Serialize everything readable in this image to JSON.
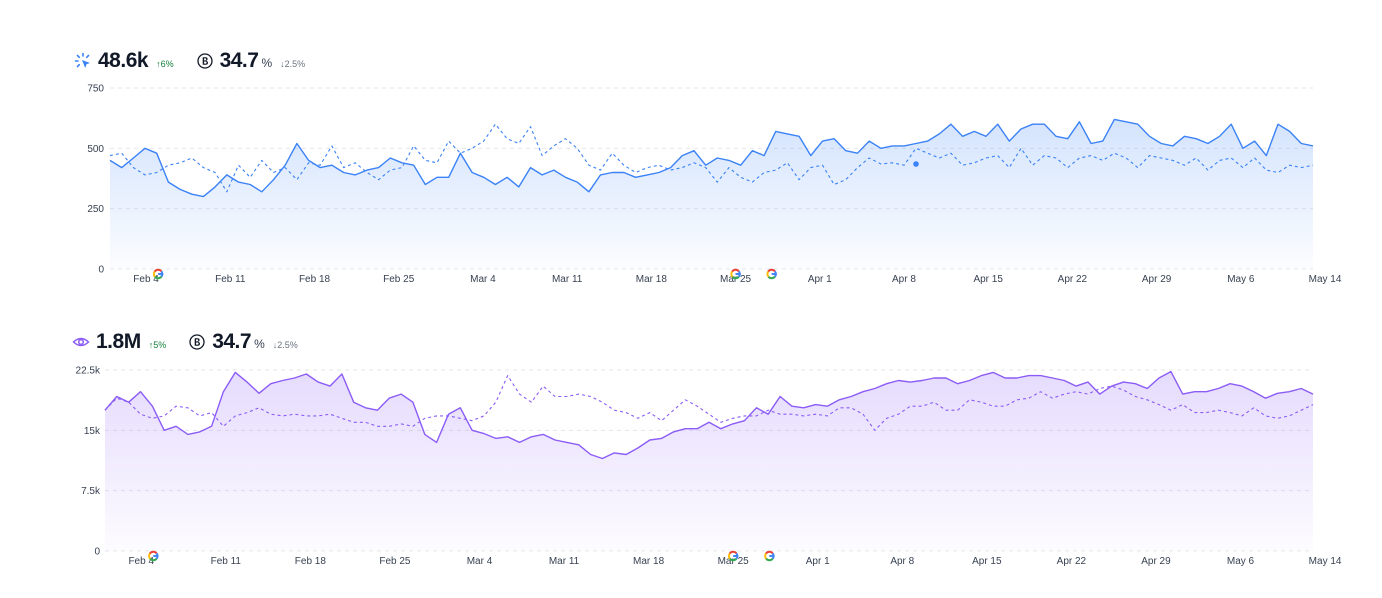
{
  "colors": {
    "blue": "#3b82f6",
    "purple": "#8b5cf6",
    "grid": "#e5e7eb",
    "delta_up": "#15803d"
  },
  "panels": [
    {
      "metric_icon": "cursor-click-icon",
      "primary_value": "48.6k",
      "primary_delta": "↑6%",
      "badge_icon": "b-circle-icon",
      "secondary_value": "34.7",
      "secondary_unit": "%",
      "secondary_delta": "↓2.5%"
    },
    {
      "metric_icon": "eye-icon",
      "primary_value": "1.8M",
      "primary_delta": "↑5%",
      "badge_icon": "b-circle-icon",
      "secondary_value": "34.7",
      "secondary_unit": "%",
      "secondary_delta": "↓2.5%"
    }
  ],
  "chart_data": [
    {
      "type": "area",
      "title": "",
      "color": "#3b82f6",
      "ylim": [
        0,
        750
      ],
      "yticks": [
        0,
        250,
        500,
        750
      ],
      "ytick_labels": [
        "0",
        "250",
        "500",
        "750"
      ],
      "xlim": [
        0,
        100
      ],
      "xticks": [
        3,
        10,
        17,
        24,
        31,
        38,
        45,
        52,
        59,
        66,
        73,
        80,
        87,
        94,
        101
      ],
      "xtick_labels": [
        "Feb 4",
        "Feb 11",
        "Feb 18",
        "Feb 25",
        "Mar 4",
        "Mar 11",
        "Mar 18",
        "Mar 25",
        "Apr 1",
        "Apr 8",
        "Apr 15",
        "Apr 22",
        "Apr 29",
        "May 6",
        "May 14"
      ],
      "annotations": [
        {
          "label": "google-marker",
          "x": 4
        },
        {
          "label": "google-marker",
          "x": 52
        },
        {
          "label": "google-marker",
          "x": 55
        }
      ],
      "highlight_point": {
        "x": 67,
        "y": 435
      },
      "grid": true,
      "series": [
        {
          "style": "solid",
          "values": [
            450,
            420,
            460,
            500,
            480,
            360,
            330,
            310,
            300,
            340,
            390,
            360,
            350,
            320,
            370,
            430,
            520,
            450,
            420,
            430,
            400,
            390,
            410,
            420,
            460,
            440,
            430,
            350,
            380,
            380,
            480,
            400,
            380,
            350,
            380,
            340,
            420,
            390,
            410,
            380,
            360,
            320,
            390,
            400,
            400,
            380,
            390,
            400,
            420,
            470,
            490,
            430,
            460,
            450,
            430,
            490,
            470,
            570,
            560,
            550,
            470,
            530,
            540,
            490,
            480,
            530,
            500,
            510,
            510,
            520,
            530,
            560,
            600,
            550,
            570,
            550,
            600,
            530,
            580,
            600,
            600,
            550,
            540,
            610,
            520,
            530,
            620,
            610,
            600,
            550,
            520,
            510,
            550,
            540,
            520,
            550,
            600,
            500,
            530,
            470,
            600,
            570,
            520,
            510
          ]
        },
        {
          "style": "dashed",
          "values": [
            470,
            480,
            420,
            390,
            400,
            430,
            440,
            460,
            420,
            400,
            320,
            430,
            380,
            450,
            400,
            420,
            370,
            440,
            430,
            510,
            420,
            440,
            400,
            370,
            410,
            420,
            510,
            450,
            440,
            530,
            480,
            500,
            530,
            600,
            540,
            520,
            590,
            470,
            510,
            540,
            500,
            430,
            410,
            480,
            430,
            400,
            420,
            430,
            410,
            420,
            440,
            420,
            360,
            420,
            380,
            360,
            400,
            410,
            440,
            370,
            420,
            430,
            350,
            370,
            420,
            460,
            435,
            440,
            430,
            500,
            480,
            460,
            480,
            430,
            440,
            460,
            470,
            420,
            500,
            430,
            470,
            460,
            420,
            460,
            470,
            450,
            480,
            460,
            420,
            470,
            460,
            450,
            430,
            460,
            410,
            450,
            460,
            420,
            460,
            410,
            400,
            430,
            420,
            430
          ]
        }
      ]
    },
    {
      "type": "area",
      "title": "",
      "color": "#8b5cf6",
      "ylim": [
        0,
        22500
      ],
      "yticks": [
        0,
        7500,
        15000,
        22500
      ],
      "ytick_labels": [
        "0",
        "7.5k",
        "15k",
        "22.5k"
      ],
      "xlim": [
        0,
        100
      ],
      "xticks": [
        3,
        10,
        17,
        24,
        31,
        38,
        45,
        52,
        59,
        66,
        73,
        80,
        87,
        94,
        101
      ],
      "xtick_labels": [
        "Feb 4",
        "Feb 11",
        "Feb 18",
        "Feb 25",
        "Mar 4",
        "Mar 11",
        "Mar 18",
        "Mar 25",
        "Apr 1",
        "Apr 8",
        "Apr 15",
        "Apr 22",
        "Apr 29",
        "May 6",
        "May 14"
      ],
      "annotations": [
        {
          "label": "google-marker",
          "x": 4
        },
        {
          "label": "google-marker",
          "x": 52
        },
        {
          "label": "google-marker",
          "x": 55
        }
      ],
      "grid": true,
      "series": [
        {
          "style": "solid",
          "values": [
            17500,
            19200,
            18500,
            19800,
            18000,
            15000,
            15500,
            14500,
            14800,
            15500,
            19800,
            22200,
            21000,
            19600,
            20800,
            21200,
            21500,
            22000,
            21000,
            20500,
            22000,
            18500,
            17800,
            17500,
            19000,
            19500,
            18500,
            14500,
            13500,
            17000,
            17800,
            15000,
            14600,
            14000,
            14200,
            13500,
            14200,
            14500,
            13800,
            13500,
            13200,
            12000,
            11500,
            12200,
            12000,
            12800,
            13800,
            14000,
            14800,
            15200,
            15200,
            16000,
            15200,
            15800,
            16200,
            17800,
            17000,
            19200,
            18000,
            17800,
            18200,
            18000,
            18800,
            19200,
            19800,
            20200,
            20800,
            21200,
            21000,
            21200,
            21500,
            21500,
            20800,
            21200,
            21800,
            22200,
            21500,
            21500,
            21800,
            21800,
            21500,
            21200,
            20500,
            21000,
            19500,
            20500,
            21000,
            20800,
            20200,
            21500,
            22300,
            19500,
            19800,
            19800,
            20200,
            20800,
            20500,
            19800,
            19000,
            19600,
            19800,
            20200,
            19500
          ]
        },
        {
          "style": "dashed",
          "values": [
            17500,
            19000,
            18500,
            17000,
            16500,
            16800,
            18000,
            17800,
            16800,
            17200,
            15500,
            16800,
            17200,
            17800,
            17000,
            16800,
            17000,
            16800,
            16800,
            17000,
            16500,
            16000,
            16000,
            15500,
            15500,
            15800,
            15500,
            16500,
            16800,
            16800,
            16500,
            16200,
            16800,
            18500,
            21800,
            19500,
            18500,
            20500,
            19200,
            19200,
            19500,
            19200,
            18500,
            17500,
            17200,
            16500,
            17200,
            16200,
            17500,
            18800,
            18000,
            17000,
            16000,
            16500,
            16800,
            16800,
            17500,
            17000,
            17000,
            16800,
            17000,
            16800,
            17800,
            17800,
            17000,
            15000,
            16500,
            17000,
            18000,
            18000,
            18500,
            17500,
            17500,
            18800,
            18500,
            18000,
            18000,
            18800,
            19000,
            19800,
            19000,
            19500,
            19800,
            19500,
            20200,
            20500,
            20000,
            19200,
            18800,
            18200,
            17500,
            18200,
            17200,
            17200,
            17500,
            17200,
            16800,
            17800,
            16800,
            16500,
            16800,
            17500,
            18200
          ]
        }
      ]
    }
  ]
}
